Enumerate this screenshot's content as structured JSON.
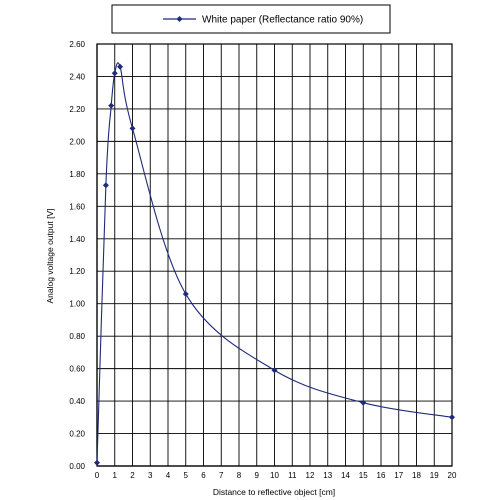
{
  "chart_data": {
    "type": "line",
    "xlabel": "Distance to reflective object [cm]",
    "ylabel": "Analog voltage output [V]",
    "xlim": [
      0,
      20
    ],
    "ylim": [
      0,
      2.6
    ],
    "x_ticks": [
      "0",
      "1",
      "2",
      "3",
      "4",
      "5",
      "6",
      "7",
      "8",
      "9",
      "10",
      "11",
      "12",
      "13",
      "14",
      "15",
      "16",
      "17",
      "18",
      "19",
      "20"
    ],
    "y_ticks": [
      "0.00",
      "0.20",
      "0.40",
      "0.60",
      "0.80",
      "1.00",
      "1.20",
      "1.40",
      "1.60",
      "1.80",
      "2.00",
      "2.20",
      "2.40",
      "2.60"
    ],
    "grid": true,
    "legend_position": "top-center",
    "series": [
      {
        "name": "White paper (Reflectance ratio 90%)",
        "color": "#1f2a7a",
        "marker": "diamond",
        "x": [
          0,
          0.5,
          0.8,
          1.0,
          1.3,
          2.0,
          5.0,
          10.0,
          15.0,
          20.0
        ],
        "y": [
          0.02,
          1.73,
          2.22,
          2.42,
          2.46,
          2.08,
          1.06,
          0.59,
          0.39,
          0.3
        ]
      }
    ]
  }
}
